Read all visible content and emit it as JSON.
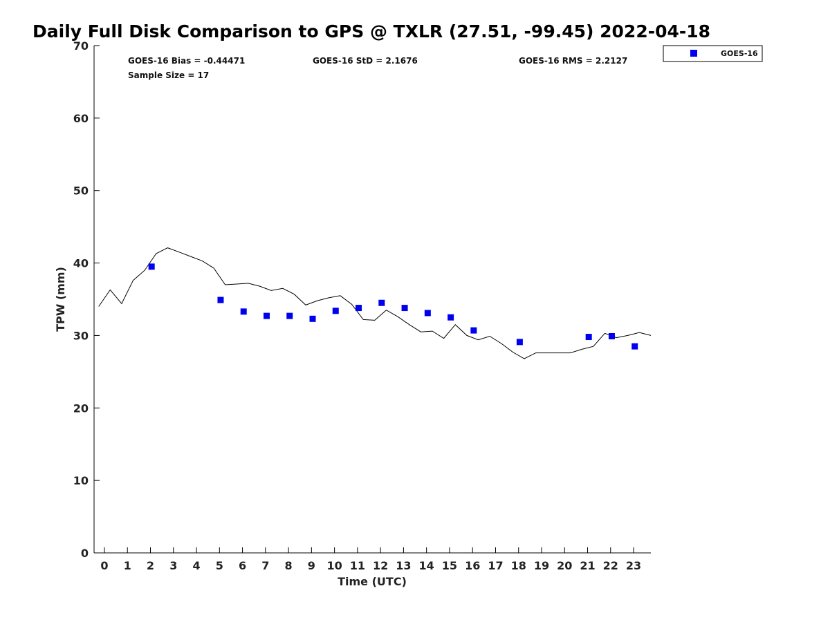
{
  "chart_data": {
    "type": "scatter",
    "title": "Daily Full Disk Comparison to GPS @ TXLR (27.51, -99.45) 2022-04-18",
    "xlabel": "Time (UTC)",
    "ylabel": "TPW (mm)",
    "xlim": [
      -0.45,
      23.75
    ],
    "ylim": [
      0,
      70
    ],
    "x_ticks": [
      0,
      1,
      2,
      3,
      4,
      5,
      6,
      7,
      8,
      9,
      10,
      11,
      12,
      13,
      14,
      15,
      16,
      17,
      18,
      19,
      20,
      21,
      22,
      23
    ],
    "y_ticks": [
      0,
      10,
      20,
      30,
      40,
      50,
      60,
      70
    ],
    "grid": false,
    "legend": {
      "placement": "top-right",
      "entries": [
        "GOES-16"
      ]
    },
    "stats": [
      "GOES-16 Bias = -0.44471",
      "GOES-16 StD = 2.1676",
      "GOES-16 RMS = 2.2127",
      "Sample Size = 17"
    ],
    "series": [
      {
        "name": "GOES-16",
        "kind": "markers",
        "color": "#0000ee",
        "x": [
          2.05,
          5.05,
          6.05,
          7.05,
          8.05,
          9.05,
          10.05,
          11.05,
          12.05,
          13.05,
          14.05,
          15.05,
          16.05,
          18.05,
          21.05,
          22.05,
          23.05
        ],
        "y": [
          39.5,
          34.9,
          33.3,
          32.7,
          32.7,
          32.3,
          33.4,
          33.8,
          34.5,
          33.8,
          33.1,
          32.5,
          30.7,
          29.1,
          29.8,
          29.9,
          28.5
        ]
      },
      {
        "kind": "line",
        "color": "#000000",
        "x": [
          -0.25,
          0.25,
          0.75,
          1.25,
          1.75,
          2.25,
          2.75,
          3.25,
          3.75,
          4.25,
          4.75,
          5.25,
          5.75,
          6.25,
          6.75,
          7.25,
          7.75,
          8.25,
          8.75,
          9.25,
          9.75,
          10.25,
          10.75,
          11.25,
          11.75,
          12.25,
          12.75,
          13.25,
          13.75,
          14.25,
          14.75,
          15.25,
          15.75,
          16.25,
          16.75,
          17.25,
          17.75,
          18.25,
          18.75,
          19.25,
          19.75,
          20.25,
          20.75,
          21.25,
          21.75,
          22.25,
          22.75,
          23.25,
          23.75
        ],
        "y": [
          34.0,
          36.3,
          34.4,
          37.6,
          39.0,
          41.3,
          42.1,
          41.5,
          40.9,
          40.3,
          39.3,
          37.0,
          37.1,
          37.2,
          36.8,
          36.2,
          36.5,
          35.7,
          34.2,
          34.8,
          35.2,
          35.5,
          34.3,
          32.2,
          32.1,
          33.5,
          32.6,
          31.5,
          30.5,
          30.6,
          29.6,
          31.5,
          30.0,
          29.4,
          29.9,
          28.9,
          27.7,
          26.8,
          27.6,
          27.6,
          27.6,
          27.6,
          28.1,
          28.5,
          30.3,
          29.7,
          30.0,
          30.4,
          30.0
        ]
      }
    ]
  }
}
